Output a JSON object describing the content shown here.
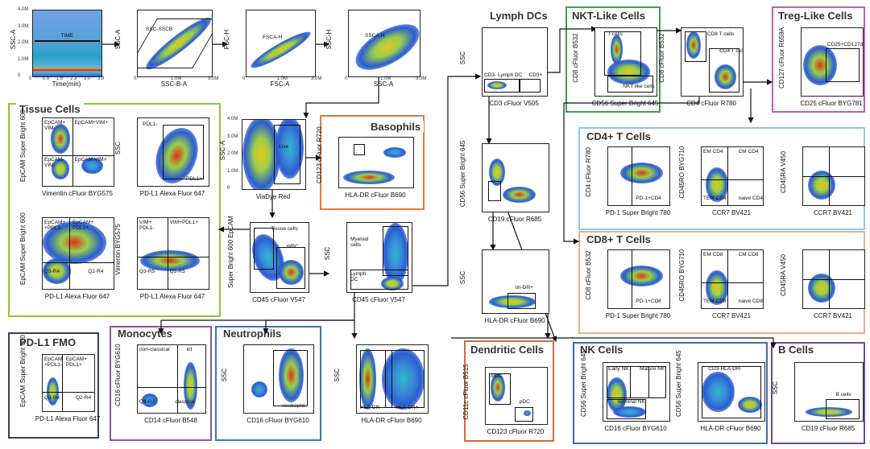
{
  "colors": {
    "tissue": "#8dc63f",
    "baso": "#e07b3c",
    "pdl1fmo": "#3c3f56",
    "mono": "#8a56a8",
    "neut": "#3a78b8",
    "lymph": "#9a9a9a",
    "nkt": "#3aa24a",
    "treg": "#c35bb8",
    "cd4": "#8cc8e6",
    "cd8": "#e8b08c",
    "dc": "#c8703c",
    "nk": "#3a6fb0",
    "bcell": "#6a4b9e"
  },
  "titles": {
    "tissue": "Tissue Cells",
    "baso": "Basophils",
    "pdl1fmo": "PD-L1 FMO",
    "mono": "Monocytes",
    "neut": "Neutrophils",
    "lymph": "Lymph DCs",
    "nkt": "NKT-Like Cells",
    "treg": "Treg-Like Cells",
    "cd4": "CD4+ T Cells",
    "cd8": "CD8+ T Cells",
    "dc": "Dendritic Cells",
    "nk": "NK Cells",
    "bcell": "B Cells"
  },
  "plots": {
    "time": {
      "x": "Time(min)",
      "y": "SSC-A",
      "gate": "TIME",
      "xt": [
        "0",
        "0.8",
        "1.5",
        "2.3",
        "3.0",
        "3.8"
      ],
      "yt": [
        "4.0M",
        "3.0M",
        "2.0M",
        "1.0M",
        "0"
      ]
    },
    "sscb": {
      "x": "SSC-B-A",
      "y": "SSC-A",
      "gate": "SSC-SSCB",
      "xt": [
        "0",
        "1.0M",
        "3.0M"
      ]
    },
    "fsc": {
      "x": "FSC-A",
      "y": "FSC-H",
      "gate": "FSCA-H",
      "xt": [
        "0",
        "1.0M",
        "3.0M"
      ]
    },
    "ssch": {
      "x": "SSC-A",
      "y": "SSC-H",
      "gate": "SSCA-H",
      "xt": [
        "0",
        "1.0M",
        "3.0M"
      ]
    },
    "live": {
      "x": "ViaDye Red",
      "y": "SSC-A",
      "gate": "Live",
      "yt": [
        "4.0M",
        "3.0M",
        "2.0M",
        "1.0M",
        "0"
      ]
    },
    "baso": {
      "x": "HLA-DR  cFluor B690",
      "y": "CD123  cFluor R720"
    },
    "tis1": {
      "x": "Vimentin  cFluor BYG575",
      "y": "EpCAM  Super Bright 600",
      "q": [
        "EpCAM+\nVIM-",
        "EpCAM+VIM+",
        "EpCAM-\nVIM-",
        "EpCAM-VIM+"
      ]
    },
    "tis2": {
      "x": "PD-L1  Alexa Fluor 647",
      "y": "SSC",
      "g1": "PDL1-",
      "g2": "PDL1+"
    },
    "tis3": {
      "x": "PD-L1  Alexa Fluor 647",
      "y": "EpCAM  Super Bright 600",
      "q": [
        "EpCAM+\n+PDL1-",
        "EpCAM+\nPDL1+",
        "Q3-R4",
        "Q2-R4"
      ]
    },
    "tis4": {
      "x": "PD-L1  Alexa Fluor 647",
      "y": "Vimentin  BYG575",
      "q": [
        "VIM+\nPDL1-",
        "VIM+PDL1+",
        "Q3-R5",
        "Q2-R5"
      ]
    },
    "cd45": {
      "x": "CD45  cFluor V547",
      "y": "Super Bright 600  EpCAM",
      "g1": "Tissue cells",
      "g2": "WBC"
    },
    "myel": {
      "x": "CD45  cFluor V547",
      "y": "SSC",
      "g1": "Myeloid\ncells",
      "g2": "Lymph.\nDC"
    },
    "fmo": {
      "x": "PD-L1  Alexa Fluor 647",
      "y": "EpCAM  Super Bright 600",
      "q": [
        "EpCAM\n+PDL1-",
        "EpCAM+\nPDL1+",
        "Q3-R4",
        "Q2-R4"
      ]
    },
    "mono": {
      "x": "CD14  cFluor B548",
      "y": "CD16  cFluor BYG610",
      "g1": "non-classical",
      "g2": "int",
      "g3": "Q4-R3",
      "g4": "classical"
    },
    "neut": {
      "x": "CD16  cFluor  BYG610",
      "y": "SSC",
      "g1": "neutrophil"
    },
    "hla": {
      "x": "HLA-DR  cFluor B690",
      "y": "SSC",
      "g1": "HLA-DR-",
      "g2": "HLA-DR+"
    },
    "ldc1": {
      "x": "CD3  cFluor V505",
      "y": "SSC",
      "g1": "CD3- Lymph DC",
      "g2": "CD3+"
    },
    "ldc2": {
      "x": "CD19  cFluor R685",
      "y": "CD56  Super Bright 645"
    },
    "ldc3": {
      "x": "HLA-DR  cFluor B690",
      "y": "SSC",
      "g1": "lin-DR+"
    },
    "dc": {
      "x": "CD123  cFluor R720",
      "y": "CD11c  cFluor B515",
      "g1": "mDC",
      "g2": "pDC"
    },
    "nkt1": {
      "x": "CD56  Super Bright 645",
      "y": "CD8  cFluor B532",
      "g1": "T cells",
      "g2": "NKT like cells"
    },
    "nkt2": {
      "x": "CD4  cFluor R780",
      "y": "CD8  cFluor B532",
      "g1": "CD8 T cells",
      "g2": "CD4 T cells"
    },
    "treg": {
      "x": "CD25  cFluor BYG781",
      "y": "CD127  cFluor R659A",
      "g1": "CD25+CD127dim/-"
    },
    "cd4a": {
      "x": "PD-1  Super Bright 780",
      "y": "CD4  cFluor R780",
      "g1": "PD-1+CD4"
    },
    "cd4b": {
      "x": "CCR7  BV421",
      "y": "CD45RO  BYG710",
      "q": [
        "EM CD4",
        "CM CD4",
        "TEM CD4",
        "naive CD4"
      ]
    },
    "cd4c": {
      "x": "CCR7  BV421",
      "y": "CD45RA  V450"
    },
    "cd8a": {
      "x": "PD-1  Super Bright 780",
      "y": "CD8  cFluor B532",
      "g1": "PD-1+CD8"
    },
    "cd8b": {
      "x": "CCR7  BV421",
      "y": "CD45RO  BYG710",
      "q": [
        "EM CD8",
        "CM CD8",
        "TEM CD8",
        "naive CD8"
      ]
    },
    "cd8c": {
      "x": "CCR7  BV421",
      "y": "CD45RA  V450"
    },
    "nk1": {
      "x": "CD16  cFluor  BYG610",
      "y": "CD56  Super Bright 645",
      "g1": "Early NK",
      "g2": "Mature NK",
      "g3": "Terminal NK"
    },
    "nk2": {
      "x": "HLA-DR  cFluor B690",
      "y": "CD56  Super Bright 645",
      "g1": "CD3-HLA-DR-"
    },
    "bcell": {
      "x": "CD19  cFluor R685",
      "y": "SSC",
      "g1": "B cells"
    }
  }
}
